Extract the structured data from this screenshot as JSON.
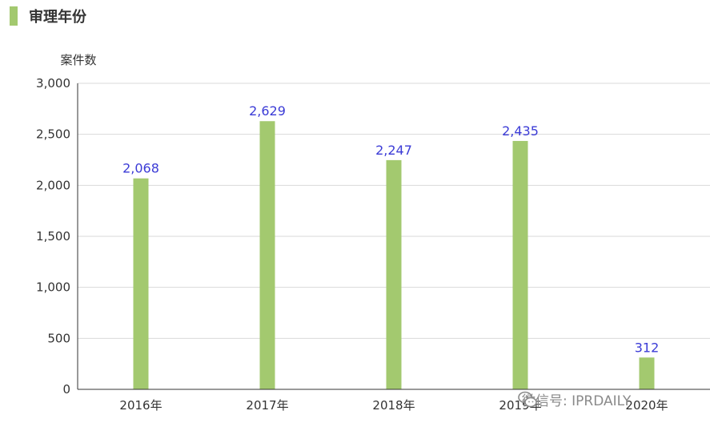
{
  "header": {
    "title": "审理年份",
    "accent_color": "#a3c96f"
  },
  "chart_data": {
    "type": "bar",
    "title": "审理年份",
    "ylabel": "案件数",
    "xlabel": "",
    "categories": [
      "2016年",
      "2017年",
      "2018年",
      "2019年",
      "2020年"
    ],
    "values": [
      2068,
      2629,
      2247,
      2435,
      312
    ],
    "value_labels": [
      "2,068",
      "2,629",
      "2,247",
      "2,435",
      "312"
    ],
    "ylim": [
      0,
      3000
    ],
    "yticks": [
      0,
      500,
      1000,
      1500,
      2000,
      2500,
      3000
    ],
    "ytick_labels": [
      "0",
      "500",
      "1,000",
      "1,500",
      "2,000",
      "2,500",
      "3,000"
    ],
    "grid": true,
    "bar_color": "#a3c96f",
    "label_color": "#3b3bd6"
  },
  "watermark": {
    "text": "微信号: IPRDAILY",
    "icon": "wechat-icon"
  }
}
